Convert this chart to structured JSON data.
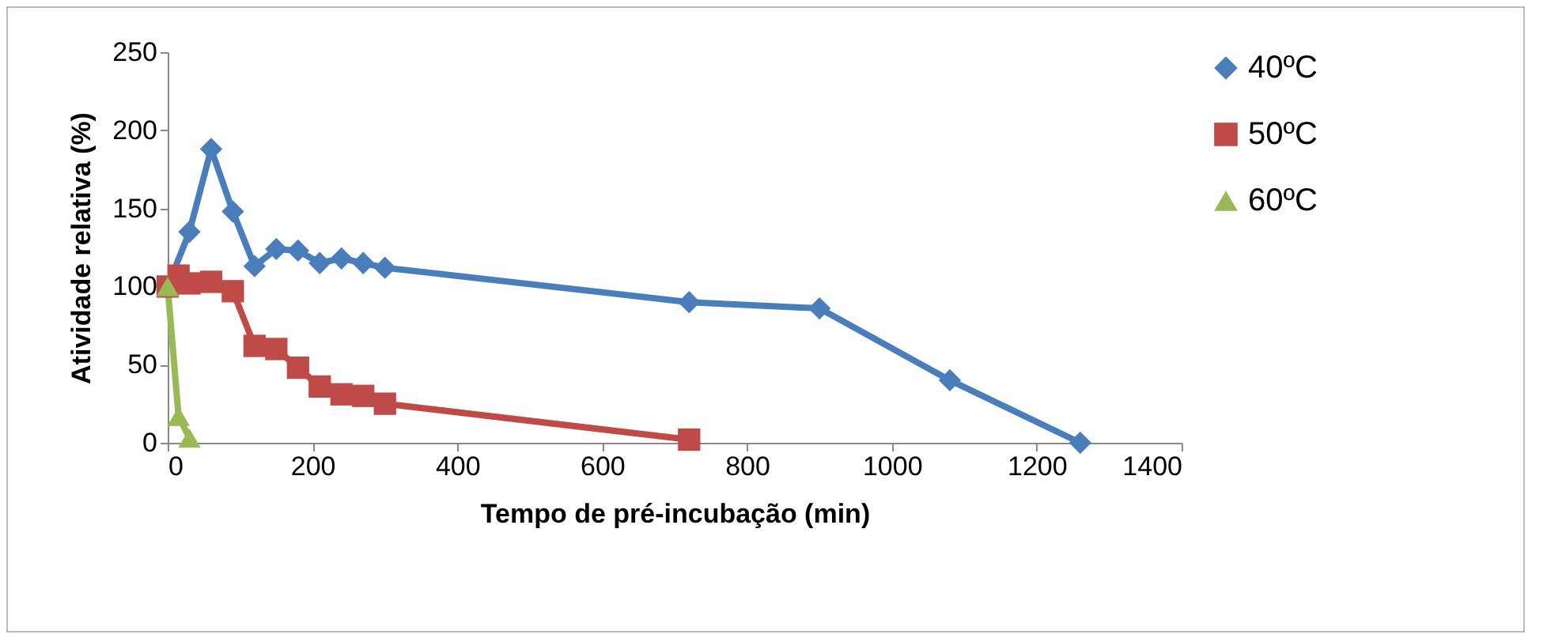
{
  "chart_data": {
    "type": "line",
    "xlabel": "Tempo de pré-incubação (min)",
    "ylabel": "Atividade relativa (%)",
    "xlim": [
      0,
      1400
    ],
    "xticks": [
      0,
      200,
      400,
      600,
      800,
      1000,
      1200,
      1400
    ],
    "ylim": [
      0,
      250
    ],
    "yticks": [
      0,
      50,
      100,
      150,
      200,
      250
    ],
    "grid": false,
    "legend": "right",
    "series": [
      {
        "name": "40ºC",
        "color": "#4a7ebb",
        "marker": "diamond",
        "x": [
          0,
          30,
          60,
          90,
          120,
          150,
          180,
          210,
          240,
          270,
          300,
          720,
          900,
          1080,
          1260
        ],
        "values": [
          100,
          135,
          188,
          148,
          113,
          124,
          123,
          115,
          118,
          115,
          112,
          90,
          86,
          40,
          0
        ]
      },
      {
        "name": "50ºC",
        "color": "#be4b48",
        "marker": "square",
        "x": [
          0,
          15,
          30,
          60,
          90,
          120,
          150,
          180,
          210,
          240,
          270,
          300,
          720
        ],
        "values": [
          100,
          107,
          102,
          103,
          97,
          62,
          60,
          48,
          36,
          31,
          30,
          25,
          2
        ]
      },
      {
        "name": "60ºC",
        "color": "#98b954",
        "marker": "triangle",
        "x": [
          0,
          15,
          30
        ],
        "values": [
          100,
          17,
          3
        ]
      }
    ]
  }
}
